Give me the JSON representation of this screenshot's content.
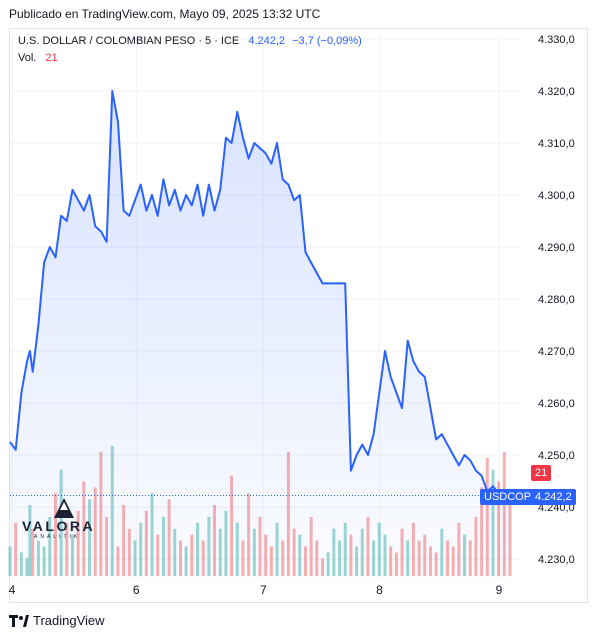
{
  "header": {
    "published": "Publicado en TradingView.com, Mayo 09, 2025 13:32 UTC"
  },
  "legend": {
    "symbol": "U.S. DOLLAR / COLOMBIAN PESO · 5 · ICE",
    "price": "4.242,2",
    "change": "−3,7 (−0,09%)",
    "vol_label": "Vol.",
    "vol_value": "21"
  },
  "price_badge": {
    "symbol": "USDCOP",
    "value": "4.242,2"
  },
  "vol_badge": "21",
  "watermark": {
    "line1": "VALORA",
    "line2": "ANALITIK"
  },
  "footer": {
    "brand": "TradingView"
  },
  "colors": {
    "line": "#2962ff",
    "vol_up": "#26a69a",
    "vol_down": "#ef5350",
    "badge_red": "#f23645"
  },
  "chart_data": {
    "type": "area",
    "y_ticks": [
      "4.330,0",
      "4.320,0",
      "4.310,0",
      "4.300,0",
      "4.290,0",
      "4.280,0",
      "4.270,0",
      "4.260,0",
      "4.250,0",
      "4.240,0",
      "4.230,0"
    ],
    "x_ticks": [
      "4",
      "6",
      "7",
      "8",
      "9"
    ],
    "ylim": [
      4227,
      4333
    ],
    "xlim": [
      0,
      100
    ],
    "x_tick_positions": [
      0,
      21.5,
      43.5,
      63.6,
      84.3
    ],
    "last_price": 4242.2,
    "series": [
      {
        "x": [
          0,
          1,
          2,
          3,
          3.5,
          4,
          5,
          6,
          7,
          8,
          9,
          10,
          11,
          12,
          13,
          14,
          15,
          16,
          17,
          18,
          19,
          20,
          21,
          22,
          23,
          24,
          25,
          26,
          27,
          28,
          29,
          30,
          31,
          32,
          33,
          34,
          35,
          36,
          37,
          38,
          39,
          40,
          41,
          42,
          43,
          44,
          45,
          46,
          47,
          48,
          49,
          50,
          51,
          52,
          53,
          54,
          55,
          56,
          57,
          58,
          59,
          60,
          61,
          62,
          63,
          64,
          65,
          66,
          67,
          68,
          69,
          70,
          71,
          72,
          73,
          74,
          75,
          76,
          77,
          78,
          79,
          80,
          81,
          82,
          83,
          84,
          85,
          86,
          87,
          88
        ],
        "values": [
          4252.5,
          4251,
          4262,
          4268,
          4270,
          4266,
          4275,
          4287,
          4290,
          4288,
          4296,
          4295,
          4301,
          4299,
          4297,
          4300,
          4294,
          4293,
          4291,
          4320,
          4314,
          4297,
          4296,
          4299,
          4302,
          4297,
          4300,
          4296,
          4303,
          4298,
          4301,
          4297,
          4300,
          4298,
          4302,
          4296,
          4302,
          4297,
          4301,
          4311,
          4310,
          4316,
          4311,
          4307,
          4310,
          4309,
          4308,
          4306,
          4310,
          4303,
          4302,
          4299,
          4300,
          4289,
          4287,
          4285,
          4283,
          4283,
          4283,
          4283,
          4283,
          4247,
          4250,
          4252,
          4250,
          4254,
          4262,
          4270,
          4265,
          4262,
          4259,
          4272,
          4268,
          4266,
          4265,
          4259,
          4253,
          4254,
          4252,
          4250,
          4248,
          4250,
          4249,
          4247,
          4246,
          4243,
          4244,
          4242.5,
          4242.3,
          4242.2
        ],
        "volume": [
          5,
          9,
          4,
          3,
          12,
          8,
          6,
          5,
          10,
          14,
          18,
          9,
          7,
          11,
          16,
          13,
          15,
          21,
          10,
          22,
          5,
          12,
          8,
          6,
          9,
          11,
          14,
          7,
          10,
          13,
          8,
          6,
          5,
          7,
          9,
          6,
          10,
          12,
          8,
          11,
          17,
          9,
          6,
          14,
          8,
          10,
          7,
          5,
          9,
          6,
          21,
          8,
          7,
          5,
          10,
          6,
          3,
          4,
          8,
          6,
          9,
          7,
          5,
          8,
          10,
          6,
          9,
          7,
          5,
          4,
          8,
          6,
          9,
          6,
          7,
          5,
          4,
          8,
          6,
          5,
          9,
          7,
          6,
          10,
          15,
          20,
          18,
          16,
          21,
          12
        ]
      }
    ]
  }
}
